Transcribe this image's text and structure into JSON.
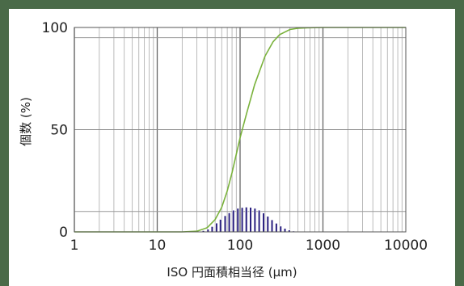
{
  "chart_data": {
    "type": "bar",
    "xscale": "log",
    "xlim": [
      1,
      10000
    ],
    "ylim": [
      0,
      100
    ],
    "xlabel": "ISO 円面積相当径 (μm)",
    "ylabel": "個数 (%)",
    "x_ticks": [
      "1",
      "10",
      "100",
      "1000",
      "10000"
    ],
    "y_ticks": [
      "0",
      "50",
      "100"
    ],
    "grid": true,
    "reference_lines_y": [
      10,
      95
    ],
    "series": [
      {
        "kind": "bar",
        "color": "#2a2080",
        "x": [
          32,
          36,
          41,
          46,
          52,
          58,
          66,
          74,
          83,
          94,
          106,
          119,
          134,
          151,
          170,
          192,
          216,
          243,
          274,
          309,
          348,
          392,
          442,
          498
        ],
        "values": [
          0.2,
          0.6,
          1.3,
          2.6,
          4.3,
          6.1,
          7.9,
          9.3,
          10.6,
          11.5,
          11.9,
          12.1,
          12.0,
          11.5,
          10.6,
          9.2,
          7.6,
          5.9,
          4.2,
          2.8,
          1.7,
          0.9,
          0.4,
          0.1
        ]
      },
      {
        "kind": "cumulative-line",
        "color": "#7ab23c",
        "x": [
          1,
          20,
          30,
          40,
          50,
          60,
          70,
          80,
          90,
          100,
          120,
          150,
          200,
          250,
          300,
          400,
          500,
          700,
          1000,
          10000
        ],
        "values": [
          0,
          0,
          0.3,
          2,
          6,
          12,
          20,
          29,
          38,
          46,
          58,
          72,
          86,
          93,
          96.5,
          99,
          99.6,
          99.9,
          100,
          100
        ]
      }
    ]
  }
}
